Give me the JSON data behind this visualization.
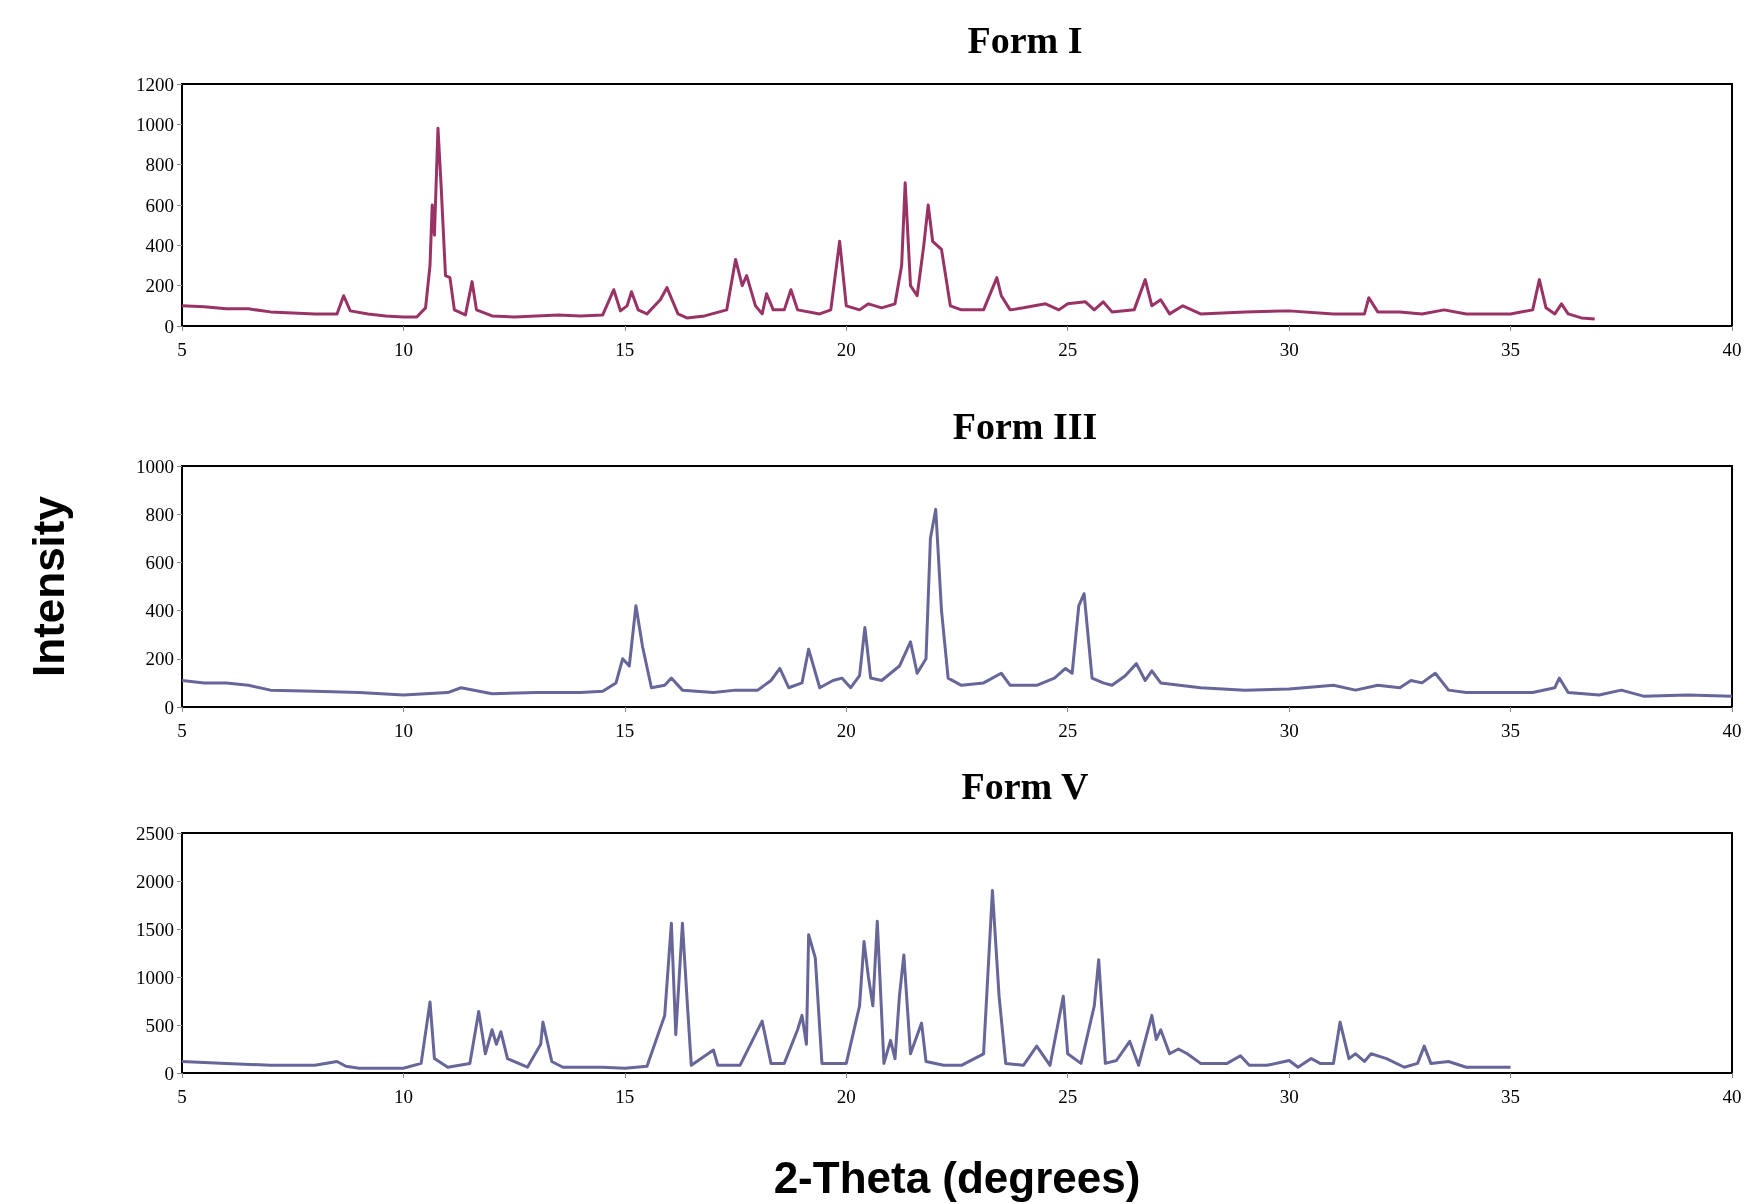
{
  "chart_data": [
    {
      "type": "line",
      "title": "Form I",
      "color": "#993366",
      "xlim": [
        5,
        40
      ],
      "xticks": [
        5,
        10,
        15,
        20,
        25,
        30,
        35,
        40
      ],
      "ylim": [
        0,
        1200
      ],
      "yticks": [
        0,
        200,
        400,
        600,
        800,
        1000,
        1200
      ],
      "x": [
        5,
        5.5,
        6,
        6.5,
        7,
        7.5,
        8,
        8.5,
        8.65,
        8.8,
        9.2,
        9.6,
        10,
        10.3,
        10.5,
        10.6,
        10.65,
        10.7,
        10.78,
        10.85,
        10.95,
        11.05,
        11.15,
        11.4,
        11.55,
        11.65,
        12,
        12.5,
        13,
        13.5,
        14,
        14.5,
        14.75,
        14.9,
        15.05,
        15.15,
        15.3,
        15.5,
        15.8,
        15.95,
        16.2,
        16.4,
        16.8,
        17.3,
        17.5,
        17.65,
        17.75,
        17.95,
        18.1,
        18.2,
        18.35,
        18.6,
        18.75,
        18.9,
        19.4,
        19.65,
        19.85,
        20,
        20.3,
        20.5,
        20.8,
        21.1,
        21.25,
        21.33,
        21.45,
        21.6,
        21.75,
        21.85,
        21.95,
        22.15,
        22.35,
        22.6,
        23.1,
        23.4,
        23.5,
        23.7,
        24,
        24.5,
        24.8,
        25,
        25.4,
        25.6,
        25.8,
        26,
        26.5,
        26.75,
        26.9,
        27.1,
        27.3,
        27.6,
        28,
        29,
        30,
        31,
        31.7,
        31.8,
        32,
        32.5,
        33,
        33.5,
        34,
        34.5,
        35,
        35.5,
        35.65,
        35.8,
        36,
        36.15,
        36.3,
        36.6,
        36.9
      ],
      "values": [
        100,
        95,
        85,
        85,
        70,
        65,
        60,
        60,
        150,
        75,
        60,
        50,
        45,
        45,
        90,
        300,
        600,
        450,
        980,
        700,
        250,
        240,
        80,
        55,
        220,
        80,
        50,
        45,
        50,
        55,
        50,
        55,
        180,
        75,
        100,
        170,
        80,
        60,
        130,
        190,
        60,
        40,
        50,
        80,
        330,
        200,
        250,
        100,
        60,
        160,
        80,
        80,
        180,
        80,
        60,
        80,
        420,
        100,
        80,
        110,
        90,
        110,
        300,
        710,
        200,
        150,
        400,
        600,
        420,
        380,
        100,
        80,
        80,
        240,
        150,
        80,
        90,
        110,
        80,
        110,
        120,
        80,
        120,
        70,
        80,
        230,
        100,
        130,
        60,
        100,
        60,
        70,
        75,
        60,
        60,
        140,
        70,
        70,
        60,
        80,
        60,
        60,
        60,
        80,
        230,
        90,
        60,
        110,
        60,
        40,
        35
      ]
    },
    {
      "type": "line",
      "title": "Form III",
      "ylabel": "Intensity",
      "color": "#666699",
      "xlim": [
        5,
        40
      ],
      "xticks": [
        5,
        10,
        15,
        20,
        25,
        30,
        35,
        40
      ],
      "ylim": [
        0,
        1000
      ],
      "yticks": [
        0,
        200,
        400,
        600,
        800,
        1000
      ],
      "x": [
        5,
        5.5,
        6,
        6.5,
        7,
        8,
        9,
        10,
        11,
        11.3,
        12,
        13,
        14,
        14.5,
        14.8,
        14.95,
        15.1,
        15.25,
        15.4,
        15.6,
        15.9,
        16.05,
        16.3,
        17,
        17.5,
        18,
        18.3,
        18.5,
        18.7,
        19,
        19.15,
        19.4,
        19.7,
        19.9,
        20.1,
        20.3,
        20.42,
        20.55,
        20.8,
        21.2,
        21.45,
        21.6,
        21.8,
        21.9,
        22.02,
        22.15,
        22.3,
        22.6,
        23.1,
        23.5,
        23.7,
        24.3,
        24.7,
        24.95,
        25.1,
        25.25,
        25.37,
        25.55,
        25.8,
        26,
        26.3,
        26.55,
        26.75,
        26.9,
        27.1,
        28,
        29,
        30,
        31,
        31.5,
        32,
        32.5,
        32.75,
        33,
        33.3,
        33.6,
        34,
        35,
        35.5,
        36,
        36.1,
        36.3,
        37,
        37.5,
        38,
        39,
        40
      ],
      "values": [
        110,
        100,
        100,
        90,
        70,
        65,
        60,
        50,
        60,
        80,
        55,
        60,
        60,
        65,
        100,
        200,
        170,
        420,
        250,
        80,
        90,
        120,
        70,
        60,
        70,
        70,
        110,
        160,
        80,
        100,
        240,
        80,
        110,
        120,
        80,
        130,
        330,
        120,
        110,
        170,
        270,
        140,
        200,
        700,
        820,
        400,
        120,
        90,
        100,
        140,
        90,
        90,
        120,
        160,
        140,
        420,
        470,
        120,
        100,
        90,
        130,
        180,
        110,
        150,
        100,
        80,
        70,
        75,
        90,
        70,
        90,
        80,
        110,
        100,
        140,
        70,
        60,
        60,
        60,
        80,
        120,
        60,
        50,
        70,
        45,
        50,
        45
      ]
    },
    {
      "type": "line",
      "title": "Form V",
      "xlabel": "2-Theta (degrees)",
      "color": "#666699",
      "xlim": [
        5,
        40
      ],
      "xticks": [
        5,
        10,
        15,
        20,
        25,
        30,
        35,
        40
      ],
      "ylim": [
        0,
        2500
      ],
      "yticks": [
        0,
        500,
        1000,
        1500,
        2000,
        2500
      ],
      "x": [
        5,
        6,
        7,
        8,
        8.5,
        8.7,
        9,
        10,
        10.4,
        10.6,
        10.7,
        11,
        11.5,
        11.7,
        11.85,
        12,
        12.1,
        12.2,
        12.35,
        12.8,
        13.1,
        13.15,
        13.35,
        13.6,
        14,
        14.5,
        15,
        15.5,
        15.9,
        16.05,
        16.15,
        16.3,
        16.4,
        16.5,
        17,
        17.1,
        17.6,
        18,
        18.1,
        18.3,
        18.6,
        18.9,
        19,
        19.1,
        19.15,
        19.3,
        19.45,
        20,
        20.3,
        20.4,
        20.5,
        20.6,
        20.7,
        20.85,
        21,
        21.1,
        21.2,
        21.3,
        21.45,
        21.7,
        21.8,
        22.2,
        22.6,
        23.1,
        23.3,
        23.45,
        23.6,
        24,
        24.3,
        24.6,
        24.9,
        25,
        25.3,
        25.6,
        25.7,
        25.85,
        26.1,
        26.4,
        26.6,
        26.9,
        27,
        27.1,
        27.3,
        27.5,
        27.7,
        28,
        28.6,
        28.9,
        29.1,
        29.5,
        30,
        30.2,
        30.5,
        30.7,
        31,
        31.15,
        31.35,
        31.5,
        31.7,
        31.85,
        32.2,
        32.6,
        32.9,
        33.05,
        33.2,
        33.6,
        34,
        35
      ],
      "values": [
        120,
        100,
        80,
        80,
        120,
        70,
        50,
        50,
        100,
        740,
        150,
        60,
        100,
        640,
        200,
        450,
        300,
        430,
        150,
        60,
        300,
        530,
        120,
        60,
        60,
        60,
        50,
        70,
        600,
        1560,
        400,
        1560,
        800,
        80,
        240,
        80,
        80,
        450,
        540,
        100,
        100,
        450,
        600,
        300,
        1440,
        1200,
        100,
        100,
        700,
        1370,
        1000,
        700,
        1580,
        100,
        340,
        150,
        800,
        1230,
        200,
        520,
        120,
        80,
        80,
        200,
        1900,
        800,
        100,
        80,
        280,
        80,
        800,
        200,
        100,
        700,
        1180,
        100,
        130,
        330,
        80,
        600,
        350,
        450,
        200,
        250,
        200,
        100,
        100,
        180,
        80,
        80,
        130,
        60,
        150,
        100,
        100,
        530,
        150,
        200,
        120,
        200,
        150,
        60,
        100,
        280,
        100,
        120,
        60,
        60
      ]
    }
  ]
}
